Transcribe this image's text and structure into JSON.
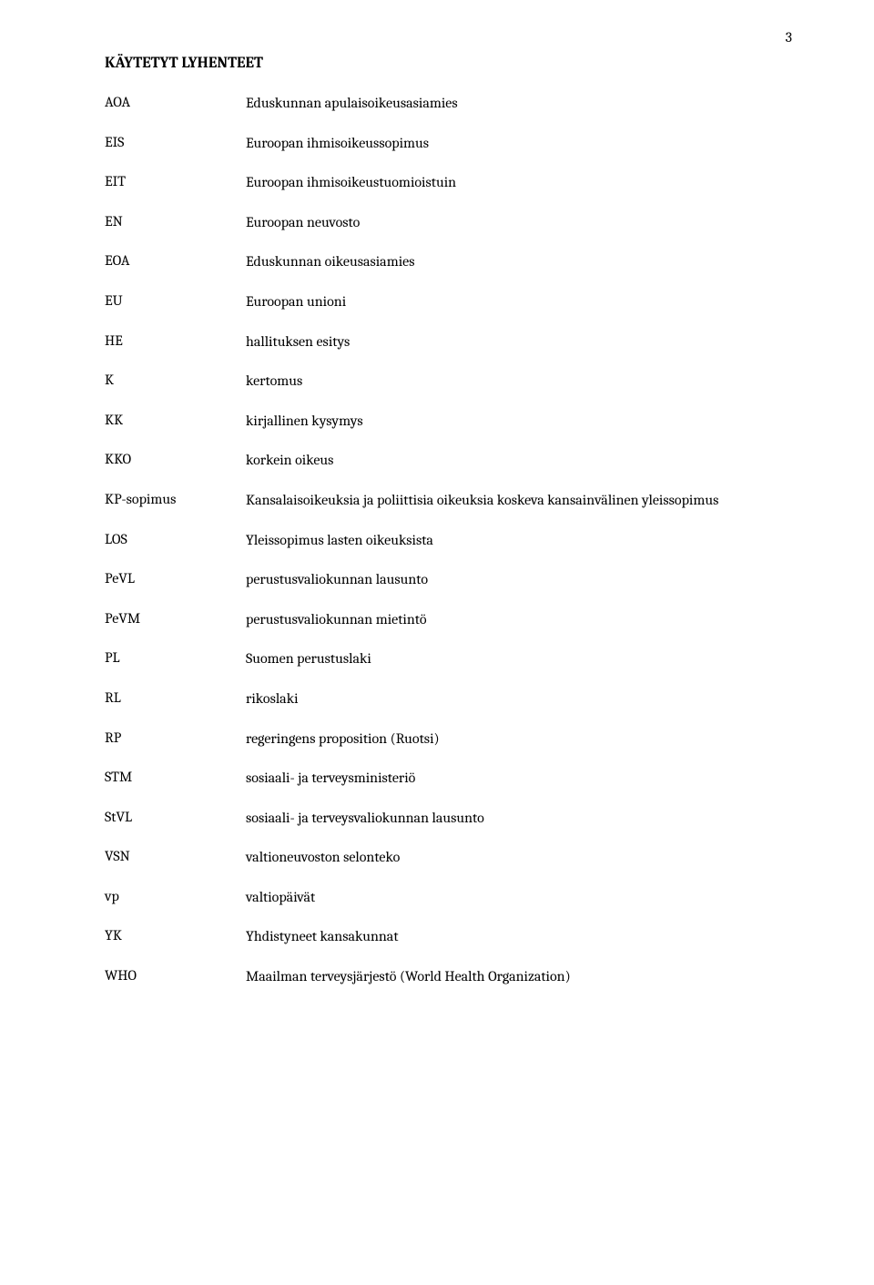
{
  "page_number": "3",
  "heading": "KÄYTETYT LYHENTEET",
  "rows": [
    {
      "key": "AOA",
      "value": "Eduskunnan apulaisoikeusasiamies"
    },
    {
      "key": "EIS",
      "value": "Euroopan ihmisoikeussopimus"
    },
    {
      "key": "EIT",
      "value": "Euroopan ihmisoikeustuomioistuin"
    },
    {
      "key": "EN",
      "value": "Euroopan neuvosto"
    },
    {
      "key": "EOA",
      "value": "Eduskunnan oikeusasiamies"
    },
    {
      "key": "EU",
      "value": "Euroopan unioni"
    },
    {
      "key": "HE",
      "value": "hallituksen esitys"
    },
    {
      "key": "K",
      "value": "kertomus"
    },
    {
      "key": "KK",
      "value": "kirjallinen kysymys"
    },
    {
      "key": "KKO",
      "value": "korkein oikeus"
    },
    {
      "key": "KP-sopimus",
      "value": "Kansalaisoikeuksia ja poliittisia oikeuksia koskeva kansainvälinen yleissopimus"
    },
    {
      "key": "LOS",
      "value": "Yleissopimus lasten oikeuksista"
    },
    {
      "key": "PeVL",
      "value": "perustusvaliokunnan lausunto"
    },
    {
      "key": "PeVM",
      "value": "perustusvaliokunnan mietintö"
    },
    {
      "key": "PL",
      "value": "Suomen perustuslaki"
    },
    {
      "key": "RL",
      "value": "rikoslaki"
    },
    {
      "key": "RP",
      "value": "regeringens proposition (Ruotsi)"
    },
    {
      "key": "STM",
      "value": "sosiaali- ja terveysministeriö"
    },
    {
      "key": "StVL",
      "value": "sosiaali- ja terveysvaliokunnan lausunto"
    },
    {
      "key": "VSN",
      "value": "valtioneuvoston selonteko"
    },
    {
      "key": "vp",
      "value": "valtiopäivät"
    },
    {
      "key": "YK",
      "value": "Yhdistyneet kansakunnat"
    },
    {
      "key": "WHO",
      "value": "Maailman terveysjärjestö (World Health Organization)"
    }
  ]
}
